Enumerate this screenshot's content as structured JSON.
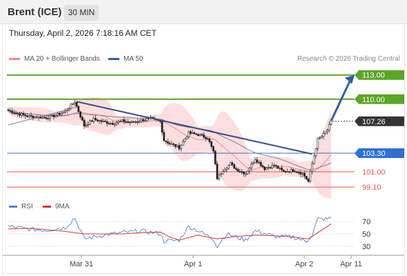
{
  "header": {
    "title": "Brent (ICE)",
    "timeframe": "30 MIN"
  },
  "timestamp": "Thursday, April 2, 2026 7:18:16 AM CET",
  "legend": {
    "ma20": "MA 20 + Bollinger Bands",
    "ma50": "MA 50",
    "copyright": "Research © 2026 Trading Central"
  },
  "rsi_legend": {
    "rsi": "RSI",
    "ma9": "9MA"
  },
  "colors": {
    "resistance": "#5aa626",
    "support": "#e8574f",
    "pivot": "#2f6fd6",
    "current": "#333333",
    "ma20": "#f08a8a",
    "ma50": "#7f7fa0",
    "band": "#fbd3d3",
    "trendline": "#3a4d8f",
    "arrow": "#2f5fa8",
    "rsi": "#4f7fd9",
    "rsi_ma": "#e23030"
  },
  "chart_data": [
    {
      "type": "candlestick",
      "x_ticks": [
        "Mar 31",
        "Apr 1",
        "Apr 2",
        "Apr 11"
      ],
      "ylim": [
        98.0,
        114.0
      ],
      "levels": [
        {
          "label": "113.00",
          "value": 113.0,
          "kind": "resistance"
        },
        {
          "label": "110.00",
          "value": 110.0,
          "kind": "resistance"
        },
        {
          "label": "107.26",
          "value": 107.26,
          "kind": "current"
        },
        {
          "label": "103.30",
          "value": 103.3,
          "kind": "pivot"
        },
        {
          "label": "101.00",
          "value": 101.0,
          "kind": "support"
        },
        {
          "label": "99.10",
          "value": 99.1,
          "kind": "support"
        }
      ],
      "price_path": [
        [
          0,
          108.6
        ],
        [
          5,
          108.2
        ],
        [
          10,
          107.9
        ],
        [
          15,
          107.8
        ],
        [
          20,
          107.7
        ],
        [
          25,
          108.0
        ],
        [
          30,
          108.5
        ],
        [
          35,
          109.7
        ],
        [
          40,
          106.7
        ],
        [
          45,
          107.5
        ],
        [
          50,
          107.2
        ],
        [
          55,
          107.0
        ],
        [
          60,
          107.3
        ],
        [
          65,
          107.1
        ],
        [
          70,
          107.4
        ],
        [
          75,
          107.6
        ],
        [
          80,
          107.2
        ],
        [
          82,
          104.9
        ],
        [
          85,
          104.5
        ],
        [
          90,
          104.0
        ],
        [
          95,
          105.8
        ],
        [
          100,
          105.6
        ],
        [
          105,
          105.2
        ],
        [
          108,
          103.5
        ],
        [
          110,
          100.2
        ],
        [
          113,
          101.2
        ],
        [
          117,
          102.0
        ],
        [
          120,
          101.3
        ],
        [
          125,
          100.8
        ],
        [
          130,
          102.6
        ],
        [
          135,
          101.4
        ],
        [
          140,
          101.8
        ],
        [
          145,
          101.0
        ],
        [
          150,
          101.2
        ],
        [
          155,
          100.8
        ],
        [
          158,
          99.8
        ],
        [
          160,
          102.0
        ],
        [
          163,
          105.0
        ],
        [
          166,
          105.6
        ],
        [
          168,
          106.2
        ],
        [
          170,
          107.2
        ]
      ]
    },
    {
      "type": "line",
      "ylabels": [
        "70",
        "50",
        "30"
      ],
      "ylim": [
        20,
        80
      ],
      "series": [
        {
          "name": "RSI",
          "values": [
            [
              0,
              62
            ],
            [
              10,
              58
            ],
            [
              20,
              56
            ],
            [
              30,
              60
            ],
            [
              35,
              76
            ],
            [
              40,
              42
            ],
            [
              50,
              48
            ],
            [
              60,
              52
            ],
            [
              70,
              55
            ],
            [
              80,
              50
            ],
            [
              82,
              38
            ],
            [
              90,
              40
            ],
            [
              95,
              62
            ],
            [
              100,
              55
            ],
            [
              108,
              42
            ],
            [
              110,
              30
            ],
            [
              115,
              50
            ],
            [
              125,
              40
            ],
            [
              130,
              55
            ],
            [
              140,
              46
            ],
            [
              150,
              45
            ],
            [
              157,
              38
            ],
            [
              160,
              48
            ],
            [
              163,
              74
            ],
            [
              168,
              74
            ],
            [
              170,
              76
            ]
          ]
        },
        {
          "name": "9MA",
          "values": [
            [
              0,
              58
            ],
            [
              10,
              59
            ],
            [
              20,
              57
            ],
            [
              30,
              54
            ],
            [
              40,
              50
            ],
            [
              50,
              50
            ],
            [
              60,
              50
            ],
            [
              70,
              52
            ],
            [
              80,
              53
            ],
            [
              85,
              45
            ],
            [
              90,
              40
            ],
            [
              100,
              48
            ],
            [
              110,
              42
            ],
            [
              120,
              46
            ],
            [
              130,
              48
            ],
            [
              140,
              47
            ],
            [
              150,
              45
            ],
            [
              158,
              42
            ],
            [
              163,
              52
            ],
            [
              170,
              66
            ]
          ]
        }
      ]
    }
  ]
}
